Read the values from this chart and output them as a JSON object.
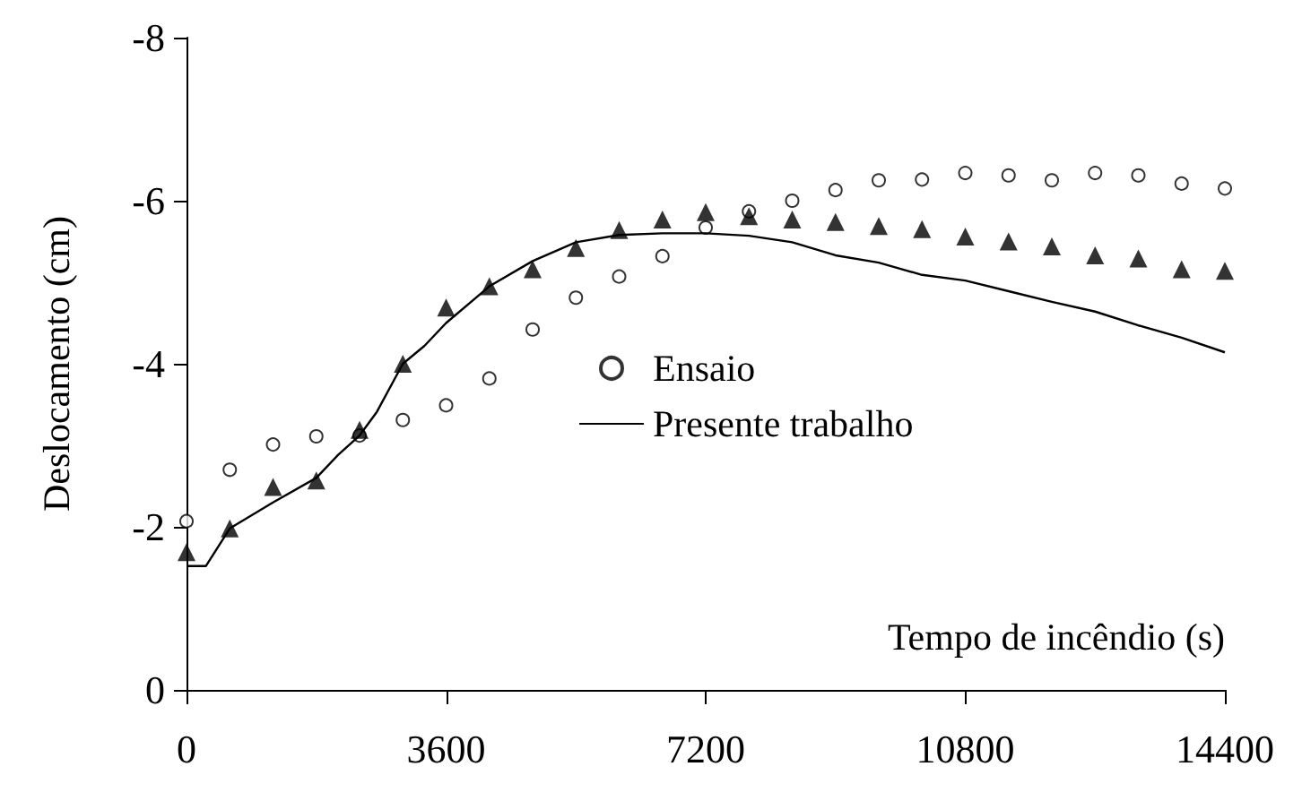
{
  "chart_data": {
    "type": "scatter",
    "xlabel": "Tempo de incêndio (s)",
    "ylabel": "Deslocamento (cm)",
    "xlim": [
      0,
      14400
    ],
    "xticks": [
      0,
      3600,
      7200,
      10800,
      14400
    ],
    "ylim": [
      0,
      -8
    ],
    "yticks": [
      0,
      -2,
      -4,
      -6,
      -8
    ],
    "grid": false,
    "legend": "right",
    "series": [
      {
        "name": "Ensaio",
        "marker": "circle",
        "color": "#000000",
        "x": [
          0,
          600,
          1200,
          1800,
          2400,
          3000,
          3600,
          4200,
          4800,
          5400,
          6000,
          6600,
          7200,
          7800,
          8400,
          9000,
          9600,
          10200,
          10800,
          11400,
          12000,
          12600,
          13200,
          13800,
          14400
        ],
        "values": [
          -2.07,
          -2.7,
          -3.01,
          -3.11,
          -3.12,
          -3.31,
          -3.49,
          -3.82,
          -4.42,
          -4.81,
          -5.07,
          -5.32,
          -5.67,
          -5.87,
          -6.0,
          -6.13,
          -6.25,
          -6.26,
          -6.34,
          -6.31,
          -6.25,
          -6.34,
          -6.31,
          -6.21,
          -6.15
        ]
      },
      {
        "marker": "triangle",
        "color": "#000000",
        "x": [
          0,
          600,
          1200,
          1800,
          2400,
          3000,
          3600,
          4200,
          4800,
          5400,
          6000,
          6600,
          7200,
          7800,
          8400,
          9000,
          9600,
          10200,
          10800,
          11400,
          12000,
          12600,
          13200,
          13800,
          14400
        ],
        "values": [
          -1.69,
          -1.98,
          -2.49,
          -2.57,
          -3.19,
          -4.0,
          -4.69,
          -4.95,
          -5.16,
          -5.42,
          -5.64,
          -5.77,
          -5.86,
          -5.81,
          -5.77,
          -5.74,
          -5.69,
          -5.65,
          -5.56,
          -5.5,
          -5.44,
          -5.33,
          -5.29,
          -5.16,
          -5.14
        ]
      },
      {
        "name": "Presente trabalho",
        "type": "line",
        "marker": "none",
        "line_style": "solid",
        "color": "#000000",
        "x": [
          0,
          270,
          600,
          1200,
          1800,
          2100,
          2400,
          2640,
          3000,
          3300,
          3600,
          4200,
          4800,
          5400,
          6000,
          6600,
          7200,
          7800,
          8400,
          9000,
          9600,
          10200,
          10800,
          11400,
          12000,
          12600,
          13200,
          13800,
          14400
        ],
        "values": [
          -1.52,
          -1.52,
          -1.98,
          -2.3,
          -2.6,
          -2.88,
          -3.12,
          -3.41,
          -4.0,
          -4.22,
          -4.5,
          -4.95,
          -5.26,
          -5.49,
          -5.58,
          -5.6,
          -5.6,
          -5.57,
          -5.49,
          -5.33,
          -5.24,
          -5.09,
          -5.02,
          -4.89,
          -4.76,
          -4.64,
          -4.47,
          -4.32,
          -4.14
        ]
      }
    ]
  }
}
